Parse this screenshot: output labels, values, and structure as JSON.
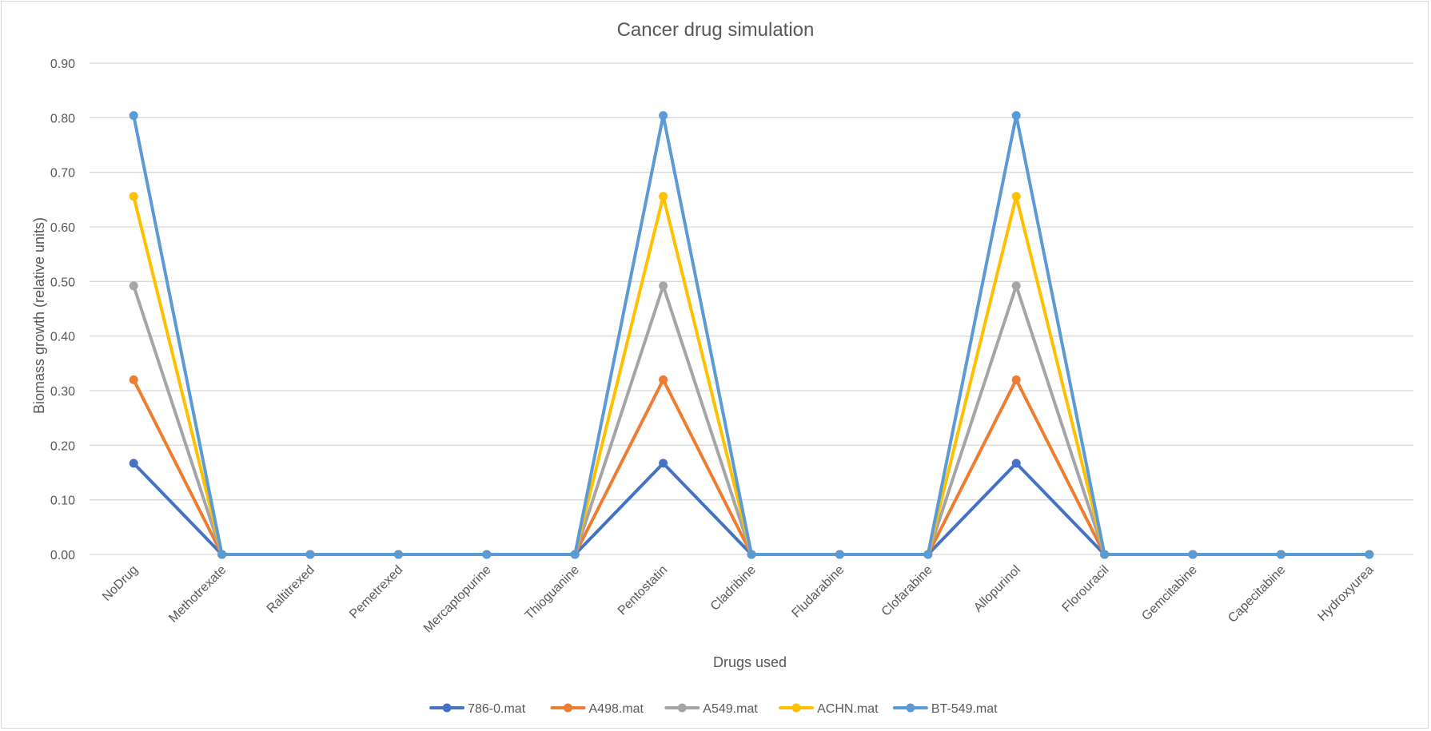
{
  "chart_data": {
    "type": "line",
    "title": "Cancer drug simulation",
    "xlabel": "Drugs used",
    "ylabel": "Biomass growth (relative units)",
    "ylim": [
      0,
      0.9
    ],
    "yticks": [
      0,
      0.1,
      0.2,
      0.3,
      0.4,
      0.5,
      0.6,
      0.7,
      0.8,
      0.9
    ],
    "ytick_labels": [
      "0.00",
      "0.10",
      "0.20",
      "0.30",
      "0.40",
      "0.50",
      "0.60",
      "0.70",
      "0.80",
      "0.90"
    ],
    "grid": true,
    "legend_position": "bottom",
    "categories": [
      "NoDrug",
      "Methotrexate",
      "Raltitrexed",
      "Pemetrexed",
      "Mercaptopurine",
      "Thioguanine",
      "Pentostatin",
      "Cladribine",
      "Fludarabine",
      "Clofarabine",
      "Allopurinol",
      "Florouracil",
      "Gemcitabine",
      "Capecitabine",
      "Hydroxyurea"
    ],
    "series": [
      {
        "name": "786-0.mat",
        "color": "#4472c4",
        "values": [
          0.167,
          0,
          0,
          0,
          0,
          0,
          0.167,
          0,
          0,
          0,
          0.167,
          0,
          0,
          0,
          0
        ]
      },
      {
        "name": "A498.mat",
        "color": "#ed7d31",
        "values": [
          0.32,
          0,
          0,
          0,
          0,
          0,
          0.32,
          0,
          0,
          0,
          0.32,
          0,
          0,
          0,
          0
        ]
      },
      {
        "name": "A549.mat",
        "color": "#a5a5a5",
        "values": [
          0.492,
          0,
          0,
          0,
          0,
          0,
          0.492,
          0,
          0,
          0,
          0.492,
          0,
          0,
          0,
          0
        ]
      },
      {
        "name": "ACHN.mat",
        "color": "#ffc000",
        "values": [
          0.656,
          0,
          0,
          0,
          0,
          0,
          0.656,
          0,
          0,
          0,
          0.656,
          0,
          0,
          0,
          0
        ]
      },
      {
        "name": "BT-549.mat",
        "color": "#5b9bd5",
        "values": [
          0.804,
          0,
          0,
          0,
          0,
          0,
          0.804,
          0,
          0,
          0,
          0.804,
          0,
          0,
          0,
          0
        ]
      }
    ]
  }
}
